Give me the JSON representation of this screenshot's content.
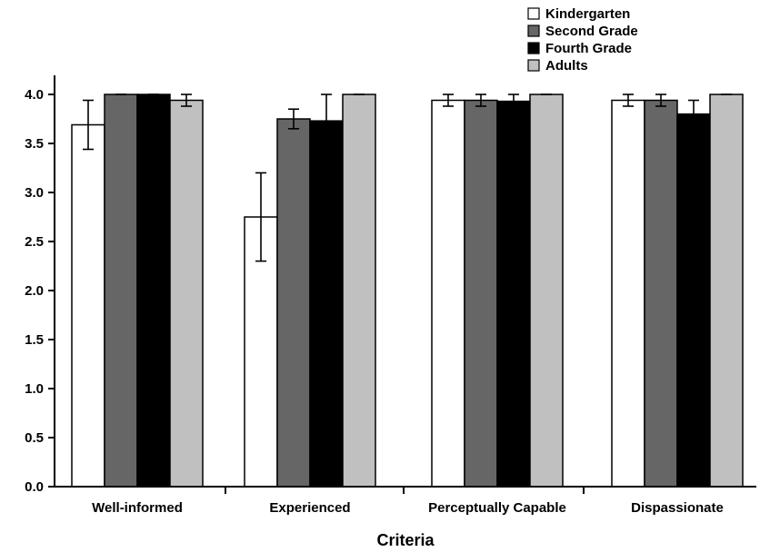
{
  "chart_data": {
    "type": "bar",
    "xlabel": "Criteria",
    "ylabel": "",
    "ylim": [
      0,
      4.0
    ],
    "yticks": [
      "0.0",
      "0.5",
      "1.0",
      "1.5",
      "2.0",
      "2.5",
      "3.0",
      "3.5",
      "4.0"
    ],
    "grid": false,
    "legend_position": "top-right",
    "categories": [
      "Well-informed",
      "Experienced",
      "Perceptually Capable",
      "Dispassionate"
    ],
    "series": [
      {
        "name": "Kindergarten",
        "color": "#ffffff",
        "values": [
          3.69,
          2.75,
          3.94,
          3.94
        ],
        "errors": [
          0.25,
          0.45,
          0.06,
          0.06
        ]
      },
      {
        "name": "Second Grade",
        "color": "#666666",
        "values": [
          4.0,
          3.75,
          3.94,
          3.94
        ],
        "errors": [
          0.0,
          0.1,
          0.06,
          0.06
        ]
      },
      {
        "name": "Fourth Grade",
        "color": "#000000",
        "values": [
          4.0,
          3.73,
          3.93,
          3.8
        ],
        "errors": [
          0.0,
          0.27,
          0.07,
          0.14
        ]
      },
      {
        "name": "Adults",
        "color": "#c0c0c0",
        "values": [
          3.94,
          4.0,
          4.0,
          4.0
        ],
        "errors": [
          0.06,
          0.0,
          0.0,
          0.0
        ]
      }
    ]
  }
}
